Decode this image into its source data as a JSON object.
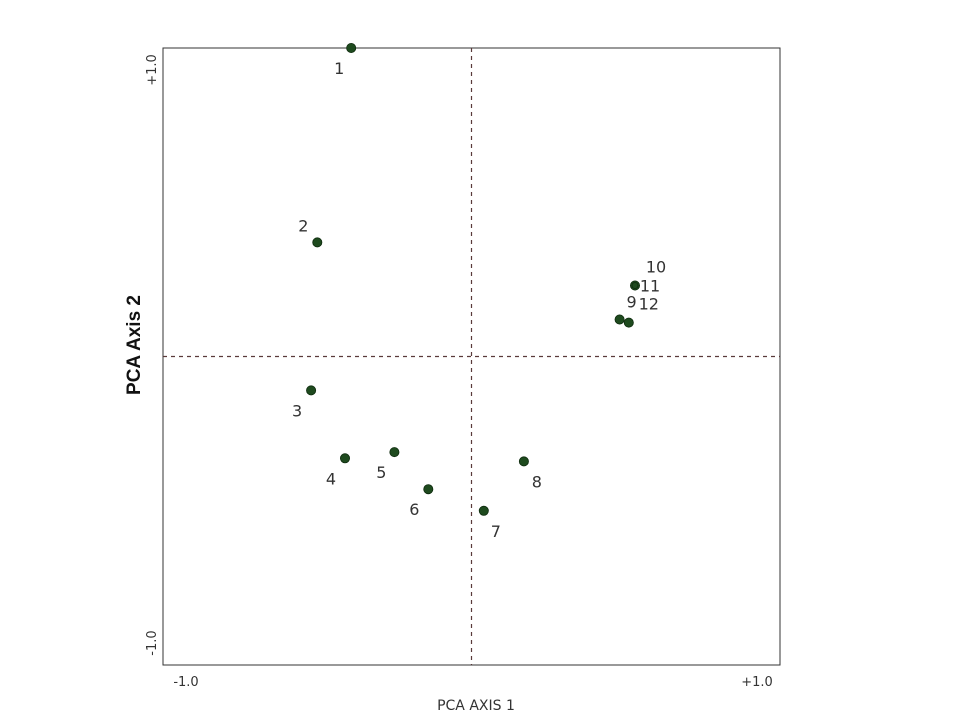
{
  "chart_data": {
    "type": "scatter",
    "xlabel": "PCA AXIS 1",
    "ylabel": "PCA Axis 2",
    "xlim": [
      -1.0,
      1.0
    ],
    "ylim": [
      -1.0,
      1.0
    ],
    "x_tick_labels": [
      "-1.0",
      "+1.0"
    ],
    "y_tick_labels": [
      "+1.0",
      "-1.0"
    ],
    "grid": false,
    "reference_lines": "dashed lines at x=0 and y=0",
    "colors": {
      "point": "#1e4a1e",
      "reference_line": "#5a3a3a",
      "frame": "#333333"
    },
    "points": [
      {
        "label": "1",
        "x": -0.39,
        "y": 1.0
      },
      {
        "label": "2",
        "x": -0.5,
        "y": 0.37
      },
      {
        "label": "3",
        "x": -0.52,
        "y": -0.11
      },
      {
        "label": "4",
        "x": -0.41,
        "y": -0.33
      },
      {
        "label": "5",
        "x": -0.25,
        "y": -0.31
      },
      {
        "label": "6",
        "x": -0.14,
        "y": -0.43
      },
      {
        "label": "7",
        "x": 0.04,
        "y": -0.5
      },
      {
        "label": "8",
        "x": 0.17,
        "y": -0.34
      },
      {
        "label": "9",
        "x": 0.48,
        "y": 0.12
      },
      {
        "label": "10",
        "x": 0.53,
        "y": 0.23
      },
      {
        "label": "11",
        "x": 0.53,
        "y": 0.23
      },
      {
        "label": "12",
        "x": 0.51,
        "y": 0.11
      }
    ]
  }
}
